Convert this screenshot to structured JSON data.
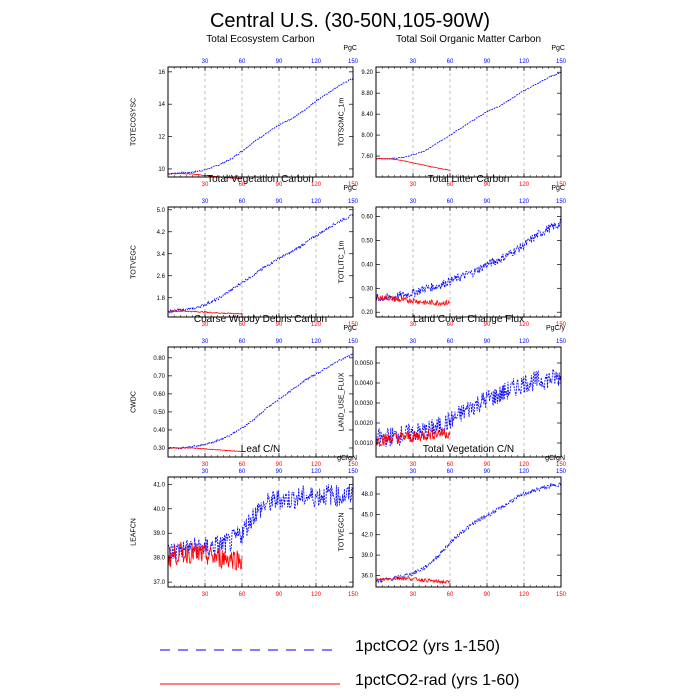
{
  "title": "Central U.S. (30-50N,105-90W)",
  "legend": [
    {
      "label": "1pctCO2 (yrs 1-150)",
      "color": "#0000ff",
      "dash": true
    },
    {
      "label": "1pctCO2-rad (yrs 1-60)",
      "color": "#ff0000",
      "dash": false
    }
  ],
  "colors": {
    "series1": "#0000ff",
    "series2": "#ff0000",
    "top_ticks": "#0000ff",
    "bottom_ticks": "#ff0000"
  },
  "chart_data": [
    {
      "type": "line",
      "title": "Total Ecosystem Carbon",
      "units": "PgC",
      "ylabel": "TOTECOSYSC",
      "xlim": [
        0,
        150
      ],
      "ylim": [
        9.5,
        16.3
      ],
      "yticks": [
        10,
        12,
        14,
        16
      ],
      "ytick_labels": [
        "10",
        "12",
        "14",
        "16"
      ],
      "xticks": [
        30,
        60,
        90,
        120,
        150
      ],
      "xtick_labels": [
        "30",
        "60",
        "90",
        "120",
        "150"
      ],
      "grid": "dashed vertical",
      "series": [
        {
          "name": "1pctCO2 (yrs 1-150)",
          "x": [
            0,
            10,
            20,
            30,
            40,
            50,
            60,
            70,
            80,
            90,
            100,
            110,
            120,
            130,
            140,
            150
          ],
          "values": [
            9.7,
            9.75,
            9.8,
            9.95,
            10.2,
            10.55,
            11.1,
            11.7,
            12.2,
            12.7,
            13.1,
            13.6,
            14.2,
            14.7,
            15.2,
            15.6
          ],
          "noise": 0.05
        },
        {
          "name": "1pctCO2-rad (yrs 1-60)",
          "x": [
            0,
            10,
            20,
            30,
            40,
            50,
            60
          ],
          "values": [
            9.7,
            9.72,
            9.68,
            9.6,
            9.52,
            9.45,
            9.4
          ],
          "noise": 0.02
        }
      ]
    },
    {
      "type": "line",
      "title": "Total Soil Organic Matter Carbon",
      "units": "PgC",
      "ylabel": "TOTSOMC_1m",
      "xlim": [
        0,
        150
      ],
      "ylim": [
        7.2,
        9.3
      ],
      "yticks": [
        7.6,
        8.0,
        8.4,
        8.8,
        9.2
      ],
      "ytick_labels": [
        "7.60",
        "8.00",
        "8.40",
        "8.80",
        "9.20"
      ],
      "xticks": [
        30,
        60,
        90,
        120,
        150
      ],
      "xtick_labels": [
        "30",
        "60",
        "90",
        "120",
        "150"
      ],
      "grid": "dashed vertical",
      "series": [
        {
          "name": "1pctCO2 (yrs 1-150)",
          "x": [
            0,
            10,
            20,
            30,
            40,
            50,
            60,
            70,
            80,
            90,
            100,
            110,
            120,
            130,
            140,
            150
          ],
          "values": [
            7.55,
            7.55,
            7.57,
            7.62,
            7.7,
            7.85,
            8.0,
            8.15,
            8.3,
            8.45,
            8.55,
            8.7,
            8.85,
            8.97,
            9.1,
            9.2
          ],
          "noise": 0.01
        },
        {
          "name": "1pctCO2-rad (yrs 1-60)",
          "x": [
            0,
            10,
            20,
            30,
            40,
            50,
            60
          ],
          "values": [
            7.55,
            7.55,
            7.52,
            7.47,
            7.42,
            7.37,
            7.33
          ],
          "noise": 0.005
        }
      ]
    },
    {
      "type": "line",
      "title": "Total Vegetation Carbon",
      "units": "PgC",
      "ylabel": "TOTVEGC",
      "xlim": [
        0,
        150
      ],
      "ylim": [
        1.1,
        5.1
      ],
      "yticks": [
        1.8,
        2.6,
        3.4,
        4.2,
        5.0
      ],
      "ytick_labels": [
        "1.8",
        "2.6",
        "3.4",
        "4.2",
        "5.0"
      ],
      "xticks": [
        30,
        60,
        90,
        120,
        150
      ],
      "xtick_labels": [
        "30",
        "60",
        "90",
        "120",
        "150"
      ],
      "grid": "dashed vertical",
      "series": [
        {
          "name": "1pctCO2 (yrs 1-150)",
          "x": [
            0,
            10,
            20,
            30,
            40,
            50,
            60,
            70,
            80,
            90,
            100,
            110,
            120,
            130,
            140,
            150
          ],
          "values": [
            1.3,
            1.35,
            1.4,
            1.55,
            1.75,
            2.05,
            2.35,
            2.65,
            2.95,
            3.25,
            3.45,
            3.75,
            4.05,
            4.35,
            4.6,
            4.8
          ],
          "noise": 0.05
        },
        {
          "name": "1pctCO2-rad (yrs 1-60)",
          "x": [
            0,
            10,
            20,
            30,
            40,
            50,
            60
          ],
          "values": [
            1.3,
            1.32,
            1.3,
            1.28,
            1.25,
            1.23,
            1.22
          ],
          "noise": 0.02
        }
      ]
    },
    {
      "type": "line",
      "title": "Total Litter Carbon",
      "units": "PgC",
      "ylabel": "TOTLITC_1m",
      "xlim": [
        0,
        150
      ],
      "ylim": [
        0.18,
        0.64
      ],
      "yticks": [
        0.2,
        0.3,
        0.4,
        0.5,
        0.6
      ],
      "ytick_labels": [
        "0.20",
        "0.30",
        "0.40",
        "0.50",
        "0.60"
      ],
      "xticks": [
        30,
        60,
        90,
        120,
        150
      ],
      "xtick_labels": [
        "30",
        "60",
        "90",
        "120",
        "150"
      ],
      "grid": "dashed vertical",
      "series": [
        {
          "name": "1pctCO2 (yrs 1-150)",
          "x": [
            0,
            10,
            20,
            30,
            40,
            50,
            60,
            70,
            80,
            90,
            100,
            110,
            120,
            130,
            140,
            150
          ],
          "values": [
            0.26,
            0.26,
            0.27,
            0.28,
            0.3,
            0.31,
            0.33,
            0.35,
            0.37,
            0.4,
            0.42,
            0.45,
            0.48,
            0.52,
            0.55,
            0.57
          ],
          "noise": 0.018
        },
        {
          "name": "1pctCO2-rad (yrs 1-60)",
          "x": [
            0,
            10,
            20,
            30,
            40,
            50,
            60
          ],
          "values": [
            0.26,
            0.26,
            0.25,
            0.25,
            0.24,
            0.24,
            0.24
          ],
          "noise": 0.012
        }
      ]
    },
    {
      "type": "line",
      "title": "Coarse Woody Debris Carbon",
      "units": "PgC",
      "ylabel": "CWDC",
      "xlim": [
        0,
        150
      ],
      "ylim": [
        0.25,
        0.86
      ],
      "yticks": [
        0.3,
        0.4,
        0.5,
        0.6,
        0.7,
        0.8
      ],
      "ytick_labels": [
        "0.30",
        "0.40",
        "0.50",
        "0.60",
        "0.70",
        "0.80"
      ],
      "xticks": [
        30,
        60,
        90,
        120,
        150
      ],
      "xtick_labels": [
        "30",
        "60",
        "90",
        "120",
        "150"
      ],
      "grid": "dashed vertical",
      "series": [
        {
          "name": "1pctCO2 (yrs 1-150)",
          "x": [
            0,
            10,
            20,
            30,
            40,
            50,
            60,
            70,
            80,
            90,
            100,
            110,
            120,
            130,
            140,
            150
          ],
          "values": [
            0.3,
            0.3,
            0.31,
            0.32,
            0.34,
            0.37,
            0.41,
            0.46,
            0.52,
            0.57,
            0.62,
            0.67,
            0.71,
            0.75,
            0.79,
            0.82
          ],
          "noise": 0.005
        },
        {
          "name": "1pctCO2-rad (yrs 1-60)",
          "x": [
            0,
            10,
            20,
            30,
            40,
            50,
            60
          ],
          "values": [
            0.3,
            0.3,
            0.3,
            0.295,
            0.29,
            0.285,
            0.28
          ],
          "noise": 0.002
        }
      ]
    },
    {
      "type": "line",
      "title": "Land Cover Change Flux",
      "units": "PgC/y",
      "ylabel": "LAND_USE_FLUX",
      "xlim": [
        0,
        150
      ],
      "ylim": [
        0.0003,
        0.0058
      ],
      "yticks": [
        0.001,
        0.002,
        0.003,
        0.004,
        0.005
      ],
      "ytick_labels": [
        "0.0010",
        "0.0020",
        "0.0030",
        "0.0040",
        "0.0050"
      ],
      "xticks": [
        30,
        60,
        90,
        120,
        150
      ],
      "xtick_labels": [
        "30",
        "60",
        "90",
        "120",
        "150"
      ],
      "grid": "dashed vertical",
      "series": [
        {
          "name": "1pctCO2 (yrs 1-150)",
          "x": [
            0,
            10,
            20,
            30,
            40,
            50,
            60,
            70,
            80,
            90,
            100,
            110,
            120,
            130,
            140,
            150
          ],
          "values": [
            0.0012,
            0.0013,
            0.0014,
            0.0015,
            0.0016,
            0.0018,
            0.0021,
            0.0025,
            0.0029,
            0.0032,
            0.0034,
            0.0037,
            0.004,
            0.0041,
            0.0042,
            0.0043
          ],
          "noise": 0.0005
        },
        {
          "name": "1pctCO2-rad (yrs 1-60)",
          "x": [
            0,
            10,
            20,
            30,
            40,
            50,
            60
          ],
          "values": [
            0.0011,
            0.0012,
            0.0013,
            0.0013,
            0.0014,
            0.0015,
            0.0015
          ],
          "noise": 0.0003
        }
      ]
    },
    {
      "type": "line",
      "title": "Leaf C/N",
      "units": "gC/gN",
      "ylabel": "LEAFCN",
      "xlim": [
        0,
        150
      ],
      "ylim": [
        36.8,
        41.3
      ],
      "yticks": [
        37,
        38,
        39,
        40,
        41
      ],
      "ytick_labels": [
        "37.0",
        "38.0",
        "39.0",
        "40.0",
        "41.0"
      ],
      "xticks": [
        30,
        60,
        90,
        120,
        150
      ],
      "xtick_labels": [
        "30",
        "60",
        "90",
        "120",
        "150"
      ],
      "grid": "dashed vertical",
      "series": [
        {
          "name": "1pctCO2 (yrs 1-150)",
          "x": [
            0,
            10,
            20,
            30,
            40,
            50,
            60,
            70,
            80,
            90,
            100,
            110,
            120,
            130,
            140,
            150
          ],
          "values": [
            38.2,
            38.3,
            38.4,
            38.4,
            38.5,
            38.6,
            39.0,
            39.8,
            40.2,
            40.4,
            40.4,
            40.5,
            40.5,
            40.6,
            40.5,
            40.6
          ],
          "noise": 0.45
        },
        {
          "name": "1pctCO2-rad (yrs 1-60)",
          "x": [
            0,
            10,
            20,
            30,
            40,
            50,
            60
          ],
          "values": [
            38.0,
            38.2,
            38.2,
            38.1,
            38.0,
            38.0,
            37.9
          ],
          "noise": 0.45
        }
      ]
    },
    {
      "type": "line",
      "title": "Total Vegetation C/N",
      "units": "gC/gN",
      "ylabel": "TOTVEGCN",
      "xlim": [
        0,
        150
      ],
      "ylim": [
        34.3,
        50.5
      ],
      "yticks": [
        36,
        39,
        42,
        45,
        48
      ],
      "ytick_labels": [
        "36.0",
        "39.0",
        "42.0",
        "45.0",
        "48.0"
      ],
      "xticks": [
        30,
        60,
        90,
        120,
        150
      ],
      "xtick_labels": [
        "30",
        "60",
        "90",
        "120",
        "150"
      ],
      "grid": "dashed vertical",
      "series": [
        {
          "name": "1pctCO2 (yrs 1-150)",
          "x": [
            0,
            10,
            20,
            30,
            40,
            50,
            60,
            70,
            80,
            90,
            100,
            110,
            120,
            130,
            140,
            150
          ],
          "values": [
            35.2,
            35.4,
            35.8,
            36.3,
            37.2,
            38.8,
            40.8,
            42.5,
            43.8,
            44.8,
            45.8,
            47.0,
            48.0,
            48.6,
            49.1,
            49.5
          ],
          "noise": 0.3
        },
        {
          "name": "1pctCO2-rad (yrs 1-60)",
          "x": [
            0,
            10,
            20,
            30,
            40,
            50,
            60
          ],
          "values": [
            35.3,
            35.5,
            35.6,
            35.5,
            35.3,
            35.1,
            35.0
          ],
          "noise": 0.25
        }
      ]
    }
  ]
}
